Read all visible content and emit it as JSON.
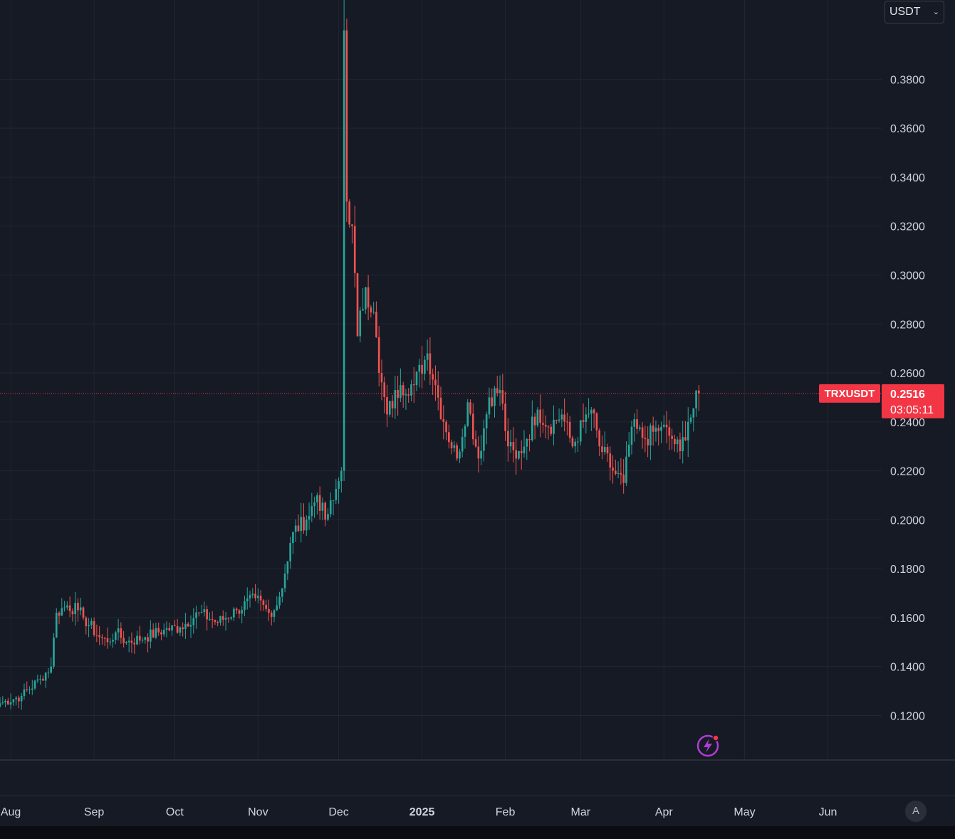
{
  "colors": {
    "background": "#161a25",
    "grid": "#22262f",
    "up": "#26a69a",
    "down": "#ef5350",
    "price_tag": "#f23645",
    "axis_text": "#d1d4dc"
  },
  "toolbar": {
    "currency": "USDT"
  },
  "price_tag": {
    "symbol": "TRXUSDT",
    "price": "0.2516",
    "countdown": "03:05:11"
  },
  "icons": {
    "alert": "lightning-alert-icon",
    "currency_chevron": "chevron-down-icon"
  },
  "auto_scale_label": "A",
  "chart_data": {
    "type": "candlestick",
    "symbol": "TRXUSDT",
    "y_axis": {
      "ticks": [
        "0.1200",
        "0.1400",
        "0.1600",
        "0.1800",
        "0.2000",
        "0.2200",
        "0.2400",
        "0.2600",
        "0.2800",
        "0.3000",
        "0.3200",
        "0.3400",
        "0.3600",
        "0.3800"
      ],
      "ylim": [
        0.1021,
        0.4124
      ],
      "position": "right"
    },
    "x_axis": {
      "ticks": [
        {
          "label": "Aug",
          "date": "2024-08-01"
        },
        {
          "label": "Sep",
          "date": "2024-09-01"
        },
        {
          "label": "Oct",
          "date": "2024-10-01"
        },
        {
          "label": "Nov",
          "date": "2024-11-01"
        },
        {
          "label": "Dec",
          "date": "2024-12-01"
        },
        {
          "label": "2025",
          "date": "2025-01-01"
        },
        {
          "label": "Feb",
          "date": "2025-02-01"
        },
        {
          "label": "Mar",
          "date": "2025-03-01"
        },
        {
          "label": "Apr",
          "date": "2025-04-01"
        },
        {
          "label": "May",
          "date": "2025-05-01"
        },
        {
          "label": "Jun",
          "date": "2025-06-01"
        }
      ],
      "xlim": [
        "2024-07-28",
        "2025-06-21"
      ]
    },
    "grid": true,
    "last_price": 0.2516,
    "anchors": [
      [
        "2024-07-28",
        0.125
      ],
      [
        "2024-08-05",
        0.128
      ],
      [
        "2024-08-12",
        0.135
      ],
      [
        "2024-08-16",
        0.14
      ],
      [
        "2024-08-18",
        0.162
      ],
      [
        "2024-08-22",
        0.165
      ],
      [
        "2024-08-26",
        0.163
      ],
      [
        "2024-08-28",
        0.16
      ],
      [
        "2024-09-03",
        0.152
      ],
      [
        "2024-09-06",
        0.15
      ],
      [
        "2024-09-09",
        0.154
      ],
      [
        "2024-09-13",
        0.15
      ],
      [
        "2024-09-20",
        0.152
      ],
      [
        "2024-09-27",
        0.155
      ],
      [
        "2024-10-03",
        0.156
      ],
      [
        "2024-10-10",
        0.162
      ],
      [
        "2024-10-17",
        0.158
      ],
      [
        "2024-10-24",
        0.163
      ],
      [
        "2024-10-31",
        0.168
      ],
      [
        "2024-11-05",
        0.162
      ],
      [
        "2024-11-08",
        0.165
      ],
      [
        "2024-11-11",
        0.178
      ],
      [
        "2024-11-14",
        0.195
      ],
      [
        "2024-11-19",
        0.2
      ],
      [
        "2024-11-23",
        0.21
      ],
      [
        "2024-11-26",
        0.2
      ],
      [
        "2024-11-29",
        0.208
      ],
      [
        "2024-12-02",
        0.22
      ],
      [
        "2024-12-03",
        0.4
      ],
      [
        "2024-12-04",
        0.33
      ],
      [
        "2024-12-06",
        0.32
      ],
      [
        "2024-12-08",
        0.275
      ],
      [
        "2024-12-11",
        0.295
      ],
      [
        "2024-12-14",
        0.285
      ],
      [
        "2024-12-16",
        0.26
      ],
      [
        "2024-12-19",
        0.243
      ],
      [
        "2024-12-24",
        0.255
      ],
      [
        "2024-12-29",
        0.255
      ],
      [
        "2025-01-03",
        0.268
      ],
      [
        "2025-01-06",
        0.255
      ],
      [
        "2025-01-09",
        0.24
      ],
      [
        "2025-01-14",
        0.225
      ],
      [
        "2025-01-18",
        0.248
      ],
      [
        "2025-01-22",
        0.225
      ],
      [
        "2025-01-26",
        0.25
      ],
      [
        "2025-01-30",
        0.253
      ],
      [
        "2025-02-02",
        0.23
      ],
      [
        "2025-02-05",
        0.225
      ],
      [
        "2025-02-09",
        0.233
      ],
      [
        "2025-02-13",
        0.245
      ],
      [
        "2025-02-17",
        0.238
      ],
      [
        "2025-02-22",
        0.243
      ],
      [
        "2025-02-26",
        0.23
      ],
      [
        "2025-03-02",
        0.24
      ],
      [
        "2025-03-05",
        0.245
      ],
      [
        "2025-03-08",
        0.23
      ],
      [
        "2025-03-13",
        0.22
      ],
      [
        "2025-03-17",
        0.215
      ],
      [
        "2025-03-20",
        0.238
      ],
      [
        "2025-03-25",
        0.233
      ],
      [
        "2025-03-31",
        0.238
      ],
      [
        "2025-04-04",
        0.233
      ],
      [
        "2025-04-07",
        0.228
      ],
      [
        "2025-04-10",
        0.24
      ],
      [
        "2025-04-14",
        0.2516
      ]
    ]
  }
}
